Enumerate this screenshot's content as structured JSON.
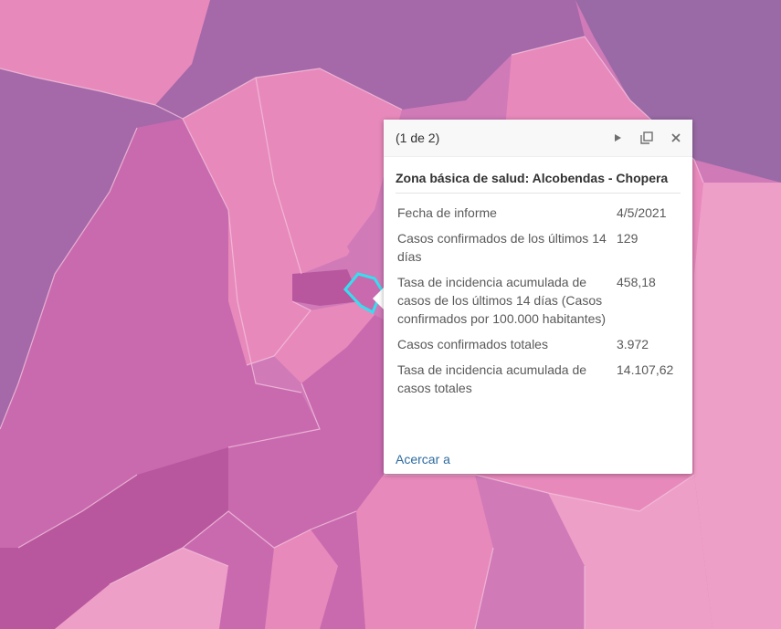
{
  "map": {
    "colors": {
      "dark": "#a568a8",
      "purple_dark": "#9a6aa6",
      "mid": "#c96aaf",
      "light": "#e889bc",
      "lighter": "#ee9fc8",
      "deep": "#b8579e",
      "selection": "#33e0f0"
    }
  },
  "popup": {
    "counter": "(1 de 2)",
    "icons": [
      "next-icon",
      "maximize-icon",
      "close-icon"
    ],
    "title": "Zona básica de salud: Alcobendas - Chopera",
    "fields": [
      {
        "label": "Fecha de informe",
        "value": "4/5/2021"
      },
      {
        "label": "Casos confirmados de los últimos 14 días",
        "value": "129"
      },
      {
        "label": "Tasa de incidencia acumulada de casos de los últimos 14 días (Casos confirmados por 100.000 habitantes)",
        "value": "458,18"
      },
      {
        "label": "Casos confirmados totales",
        "value": "3.972"
      },
      {
        "label": "Tasa de incidencia acumulada de casos totales",
        "value": "14.107,62"
      }
    ],
    "zoom_link": "Acercar a"
  }
}
